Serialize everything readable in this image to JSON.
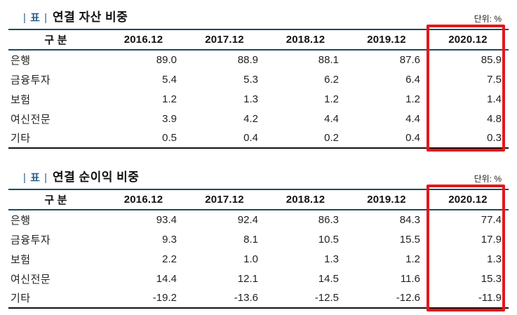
{
  "colors": {
    "accent_blue": "#2e5f8f",
    "rule_navy": "#1b4a64",
    "rule_black": "#111111",
    "highlight_red": "#e2191c"
  },
  "tables": [
    {
      "tag_open_pipe": "|",
      "tag": "표",
      "tag_close_pipe": "|",
      "title": "연결 자산 비중",
      "unit": "단위: %",
      "columns": [
        "구 분",
        "2016.12",
        "2017.12",
        "2018.12",
        "2019.12",
        "2020.12"
      ],
      "highlight_column": "2020.12",
      "rows": [
        {
          "label": "은행",
          "values": [
            "89.0",
            "88.9",
            "88.1",
            "87.6",
            "85.9"
          ]
        },
        {
          "label": "금융투자",
          "values": [
            "5.4",
            "5.3",
            "6.2",
            "6.4",
            "7.5"
          ]
        },
        {
          "label": "보험",
          "values": [
            "1.2",
            "1.3",
            "1.2",
            "1.2",
            "1.4"
          ]
        },
        {
          "label": "여신전문",
          "values": [
            "3.9",
            "4.2",
            "4.4",
            "4.4",
            "4.8"
          ]
        },
        {
          "label": "기타",
          "values": [
            "0.5",
            "0.4",
            "0.2",
            "0.4",
            "0.3"
          ]
        }
      ]
    },
    {
      "tag_open_pipe": "|",
      "tag": "표",
      "tag_close_pipe": "|",
      "title": "연결 순이익 비중",
      "unit": "단위: %",
      "columns": [
        "구 분",
        "2016.12",
        "2017.12",
        "2018.12",
        "2019.12",
        "2020.12"
      ],
      "highlight_column": "2020.12",
      "rows": [
        {
          "label": "은행",
          "values": [
            "93.4",
            "92.4",
            "86.3",
            "84.3",
            "77.4"
          ]
        },
        {
          "label": "금융투자",
          "values": [
            "9.3",
            "8.1",
            "10.5",
            "15.5",
            "17.9"
          ]
        },
        {
          "label": "보험",
          "values": [
            "2.2",
            "1.0",
            "1.3",
            "1.2",
            "1.3"
          ]
        },
        {
          "label": "여신전문",
          "values": [
            "14.4",
            "12.1",
            "14.5",
            "11.6",
            "15.3"
          ]
        },
        {
          "label": "기타",
          "values": [
            "-19.2",
            "-13.6",
            "-12.5",
            "-12.6",
            "-11.9"
          ]
        }
      ]
    }
  ]
}
